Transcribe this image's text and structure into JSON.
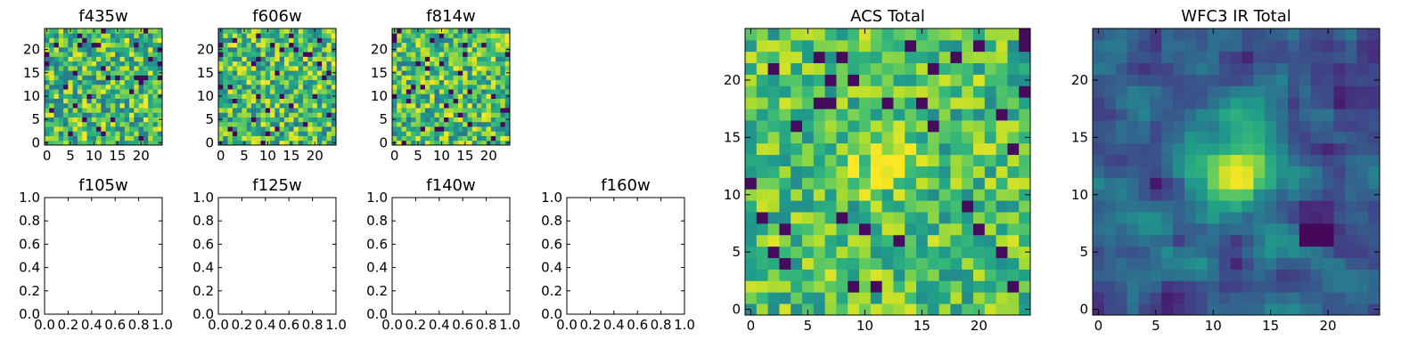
{
  "chart_data": [
    {
      "type": "heatmap",
      "title": "f435w",
      "xlim": [
        -0.5,
        24.5
      ],
      "ylim": [
        -0.5,
        24.5
      ],
      "xticks": [
        0,
        5,
        10,
        15,
        20
      ],
      "yticks": [
        0,
        5,
        10,
        15,
        20
      ],
      "grid": false,
      "colormap": "viridis",
      "seed": 11
    },
    {
      "type": "heatmap",
      "title": "f606w",
      "xlim": [
        -0.5,
        24.5
      ],
      "ylim": [
        -0.5,
        24.5
      ],
      "xticks": [
        0,
        5,
        10,
        15,
        20
      ],
      "yticks": [
        0,
        5,
        10,
        15,
        20
      ],
      "grid": false,
      "colormap": "viridis",
      "seed": 23
    },
    {
      "type": "heatmap",
      "title": "f814w",
      "xlim": [
        -0.5,
        24.5
      ],
      "ylim": [
        -0.5,
        24.5
      ],
      "xticks": [
        0,
        5,
        10,
        15,
        20
      ],
      "yticks": [
        0,
        5,
        10,
        15,
        20
      ],
      "grid": false,
      "colormap": "viridis",
      "seed": 37
    },
    {
      "type": "empty",
      "title": "f105w",
      "xlim": [
        0.0,
        1.0
      ],
      "ylim": [
        0.0,
        1.0
      ],
      "xticks": [
        "0.0",
        "0.2",
        "0.4",
        "0.6",
        "0.8",
        "1.0"
      ],
      "yticks": [
        "0.0",
        "0.2",
        "0.4",
        "0.6",
        "0.8",
        "1.0"
      ]
    },
    {
      "type": "empty",
      "title": "f125w",
      "xlim": [
        0.0,
        1.0
      ],
      "ylim": [
        0.0,
        1.0
      ],
      "xticks": [
        "0.0",
        "0.2",
        "0.4",
        "0.6",
        "0.8",
        "1.0"
      ],
      "yticks": [
        "0.0",
        "0.2",
        "0.4",
        "0.6",
        "0.8",
        "1.0"
      ]
    },
    {
      "type": "empty",
      "title": "f140w",
      "xlim": [
        0.0,
        1.0
      ],
      "ylim": [
        0.0,
        1.0
      ],
      "xticks": [
        "0.0",
        "0.2",
        "0.4",
        "0.6",
        "0.8",
        "1.0"
      ],
      "yticks": [
        "0.0",
        "0.2",
        "0.4",
        "0.6",
        "0.8",
        "1.0"
      ]
    },
    {
      "type": "empty",
      "title": "f160w",
      "xlim": [
        0.0,
        1.0
      ],
      "ylim": [
        0.0,
        1.0
      ],
      "xticks": [
        "0.0",
        "0.2",
        "0.4",
        "0.6",
        "0.8",
        "1.0"
      ],
      "yticks": [
        "0.0",
        "0.2",
        "0.4",
        "0.6",
        "0.8",
        "1.0"
      ]
    },
    {
      "type": "heatmap",
      "title": "ACS Total",
      "xlim": [
        -0.5,
        24.5
      ],
      "ylim": [
        -0.5,
        24.5
      ],
      "xticks": [
        0,
        5,
        10,
        15,
        20
      ],
      "yticks": [
        0,
        5,
        10,
        15,
        20
      ],
      "grid": false,
      "colormap": "viridis",
      "seed": 53
    },
    {
      "type": "heatmap",
      "title": "WFC3 IR Total",
      "xlim": [
        -0.5,
        24.5
      ],
      "ylim": [
        -0.5,
        24.5
      ],
      "xticks": [
        0,
        5,
        10,
        15,
        20
      ],
      "yticks": [
        0,
        5,
        10,
        15,
        20
      ],
      "grid": false,
      "colormap": "viridis",
      "seed": 71
    }
  ]
}
